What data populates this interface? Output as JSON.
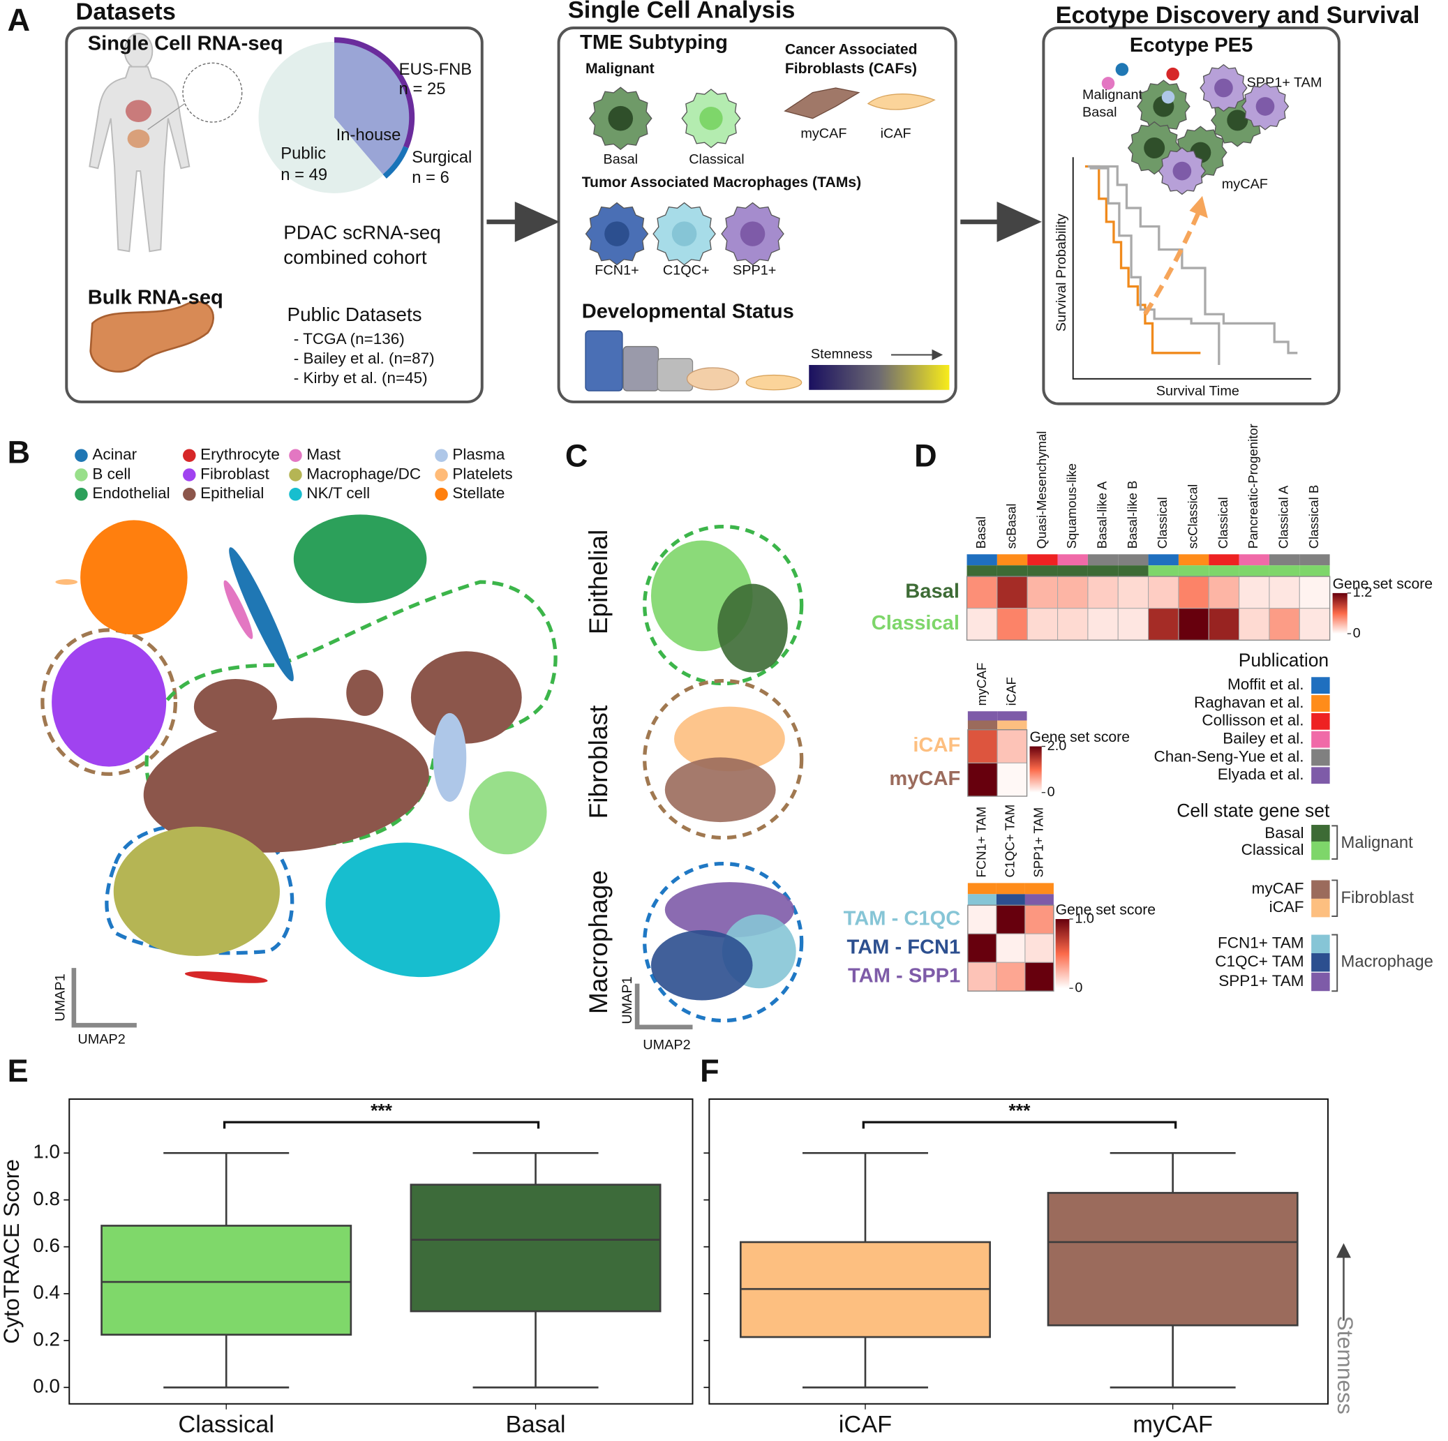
{
  "panel_labels": {
    "a": "A",
    "b": "B",
    "c": "C",
    "d": "D",
    "e": "E",
    "f": "F"
  },
  "datasets": {
    "title": "Datasets",
    "sc": "Single Cell RNA-seq",
    "cohort": [
      "PDAC scRNA-seq",
      "combined cohort"
    ],
    "bulk": "Bulk RNA-seq",
    "public_title": "Public Datasets",
    "public": [
      "- TCGA (n=136)",
      "- Bailey et al. (n=87)",
      "- Kirby et al. (n=45)"
    ]
  },
  "analysis": {
    "title": "Single Cell Analysis",
    "tme": "TME Subtyping",
    "malignant": "Malignant",
    "caf": [
      "Cancer Associated",
      "Fibroblasts (CAFs)"
    ],
    "malignant_cells": [
      "Basal",
      "Classical"
    ],
    "caf_cells": [
      "myCAF",
      "iCAF"
    ],
    "tam": "Tumor Associated Macrophages (TAMs)",
    "tam_cells": [
      "FCN1+",
      "C1QC+",
      "SPP1+"
    ],
    "dev": "Developmental Status",
    "stemness": "Stemness"
  },
  "ecotype": {
    "title": "Ecotype Discovery and Survival",
    "subtitle": "Ecotype PE5",
    "labels": [
      "Malignant",
      "Basal",
      "SPP1+ TAM",
      "myCAF"
    ],
    "x_label": "Survival Time",
    "y_label": "Survival Probability"
  },
  "umap": {
    "legend": [
      {
        "name": "Acinar",
        "color": "#1f77b4"
      },
      {
        "name": "B cell",
        "color": "#98df8a"
      },
      {
        "name": "Endothelial",
        "color": "#2ca05a"
      },
      {
        "name": "Erythrocyte",
        "color": "#d62728"
      },
      {
        "name": "Fibroblast",
        "color": "#a043f0"
      },
      {
        "name": "Epithelial",
        "color": "#8c564b"
      },
      {
        "name": "Mast",
        "color": "#e377c2"
      },
      {
        "name": "Macrophage/DC",
        "color": "#b5b554"
      },
      {
        "name": "NK/T cell",
        "color": "#17becf"
      },
      {
        "name": "Plasma",
        "color": "#aec7e8"
      },
      {
        "name": "Platelets",
        "color": "#ffbb78"
      },
      {
        "name": "Stellate",
        "color": "#ff7f0e"
      }
    ],
    "axis": [
      "UMAP1",
      "UMAP2"
    ],
    "clusters": [
      "Epithelial",
      "Fibroblast",
      "Macrophage"
    ]
  },
  "legends": {
    "publication_title": "Publication",
    "publications": [
      {
        "name": "Moffit et al.",
        "color": "#1f6fbf"
      },
      {
        "name": "Raghavan et al.",
        "color": "#ff8c1a"
      },
      {
        "name": "Collisson et al.",
        "color": "#ee2222"
      },
      {
        "name": "Bailey et al.",
        "color": "#f06aa8"
      },
      {
        "name": "Chan-Seng-Yue et al.",
        "color": "#808080"
      },
      {
        "name": "Elyada et al.",
        "color": "#7e5ba8"
      }
    ],
    "cell_state_title": "Cell state gene set",
    "cell_states": [
      {
        "name": "Basal",
        "color": "#3d6b35"
      },
      {
        "name": "Classical",
        "color": "#7ed66a"
      },
      {
        "name": "myCAF",
        "color": "#9b6b5c"
      },
      {
        "name": "iCAF",
        "color": "#fdbf80"
      },
      {
        "name": "FCN1+ TAM",
        "color": "#86c5d6"
      },
      {
        "name": "C1QC+ TAM",
        "color": "#2c4f8f"
      },
      {
        "name": "SPP1+ TAM",
        "color": "#7e5ba8"
      }
    ],
    "groups": [
      "Malignant",
      "Fibroblast",
      "Macrophage"
    ]
  },
  "chart_data": [
    {
      "type": "pie",
      "categories": [
        "Public",
        "EUS-FNB",
        "Surgical"
      ],
      "values": [
        49,
        25,
        6
      ],
      "value_labels": [
        "n = 49",
        "n = 25",
        "n = 6"
      ],
      "colors": [
        "#e3efec",
        "#6a2c9c",
        "#1a73b8"
      ],
      "group_label": "In-house",
      "group_color": "#9aa5d6"
    },
    {
      "type": "heatmap",
      "columns": [
        "Basal",
        "scBasal",
        "Quasi-Mesenchymal",
        "Squamous-like",
        "Basal-like A",
        "Basal-like B",
        "Classical",
        "scClassical",
        "Classical",
        "Pancreatic-Progenitor",
        "Classical A",
        "Classical B"
      ],
      "rows": [
        "Basal",
        "Classical"
      ],
      "row_colors": [
        "#3d6b35",
        "#7ed66a"
      ],
      "values": [
        [
          0.45,
          0.95,
          0.3,
          0.3,
          0.2,
          0.15,
          0.2,
          0.5,
          0.3,
          0.1,
          0.1,
          0.05
        ],
        [
          0.1,
          0.5,
          0.15,
          0.15,
          0.1,
          0.1,
          0.95,
          1.2,
          1.0,
          0.15,
          0.4,
          0.1
        ]
      ],
      "column_publication_colors": [
        "#1f6fbf",
        "#ff8c1a",
        "#ee2222",
        "#f06aa8",
        "#808080",
        "#808080",
        "#1f6fbf",
        "#ff8c1a",
        "#ee2222",
        "#f06aa8",
        "#808080",
        "#808080"
      ],
      "column_state_colors": [
        "#3d6b35",
        "#3d6b35",
        "#3d6b35",
        "#3d6b35",
        "#3d6b35",
        "#3d6b35",
        "#7ed66a",
        "#7ed66a",
        "#7ed66a",
        "#7ed66a",
        "#7ed66a",
        "#7ed66a"
      ],
      "colorbar_label": "Gene set score",
      "clim": [
        0,
        1.2
      ],
      "cticks": [
        0,
        1.2
      ],
      "cmap": [
        "#ffffff",
        "#fb6a4a",
        "#67000d"
      ]
    },
    {
      "type": "heatmap",
      "columns": [
        "myCAF",
        "iCAF"
      ],
      "rows": [
        "iCAF",
        "myCAF"
      ],
      "row_colors": [
        "#fdbf80",
        "#9b6b5c"
      ],
      "values": [
        [
          1.2,
          0.4
        ],
        [
          2.0,
          0.05
        ]
      ],
      "column_publication_colors": [
        "#7e5ba8",
        "#7e5ba8"
      ],
      "column_state_colors": [
        "#9b6b5c",
        "#fdbf80"
      ],
      "colorbar_label": "Gene set score",
      "clim": [
        0,
        2.0
      ],
      "cticks": [
        0,
        {
          "value": 2.0,
          "label": "2.0"
        }
      ],
      "cmap": [
        "#ffffff",
        "#fb6a4a",
        "#67000d"
      ]
    },
    {
      "type": "heatmap",
      "columns": [
        "FCN1+ TAM",
        "C1QC+ TAM",
        "SPP1+ TAM"
      ],
      "rows": [
        "TAM - C1QC",
        "TAM - FCN1",
        "TAM - SPP1"
      ],
      "row_colors": [
        "#86c5d6",
        "#2c4f8f",
        "#7e5ba8"
      ],
      "values": [
        [
          0.05,
          1.0,
          0.35
        ],
        [
          1.0,
          0.05,
          0.1
        ],
        [
          0.2,
          0.3,
          1.0
        ]
      ],
      "column_publication_colors": [
        "#ff8c1a",
        "#ff8c1a",
        "#ff8c1a"
      ],
      "column_state_colors": [
        "#86c5d6",
        "#2c4f8f",
        "#7e5ba8"
      ],
      "colorbar_label": "Gene set score",
      "clim": [
        0,
        1.0
      ],
      "cticks": [
        0,
        {
          "value": 1.0,
          "label": "1.0"
        }
      ],
      "cmap": [
        "#ffffff",
        "#fb6a4a",
        "#67000d"
      ]
    },
    {
      "type": "box",
      "ylabel": "CytoTRACE Score",
      "categories": [
        "Classical",
        "Basal"
      ],
      "colors": [
        "#7fd86a",
        "#3d6b3a"
      ],
      "boxes": [
        {
          "whislo": 0,
          "q1": 0.225,
          "med": 0.45,
          "q3": 0.69,
          "whishi": 1.0
        },
        {
          "whislo": 0,
          "q1": 0.325,
          "med": 0.63,
          "q3": 0.865,
          "whishi": 1.0
        }
      ],
      "ylim": [
        -0.07,
        1.23
      ],
      "yticks": [
        {
          "value": 0,
          "label": "0.0"
        },
        0.2,
        0.4,
        0.6,
        0.8,
        {
          "value": 1,
          "label": "1.0"
        }
      ],
      "tick_labels": true,
      "annotation": "***"
    },
    {
      "type": "box",
      "categories": [
        "iCAF",
        "myCAF"
      ],
      "colors": [
        "#fdbf80",
        "#9b6b5c"
      ],
      "boxes": [
        {
          "whislo": 0,
          "q1": 0.215,
          "med": 0.42,
          "q3": 0.62,
          "whishi": 1.0
        },
        {
          "whislo": 0,
          "q1": 0.265,
          "med": 0.62,
          "q3": 0.83,
          "whishi": 1.0
        }
      ],
      "ylim": [
        -0.07,
        1.23
      ],
      "yticks": [
        0,
        0.2,
        0.4,
        0.6,
        0.8,
        1
      ],
      "tick_labels": false,
      "annotation": "***",
      "side_label": "Stemness"
    }
  ]
}
